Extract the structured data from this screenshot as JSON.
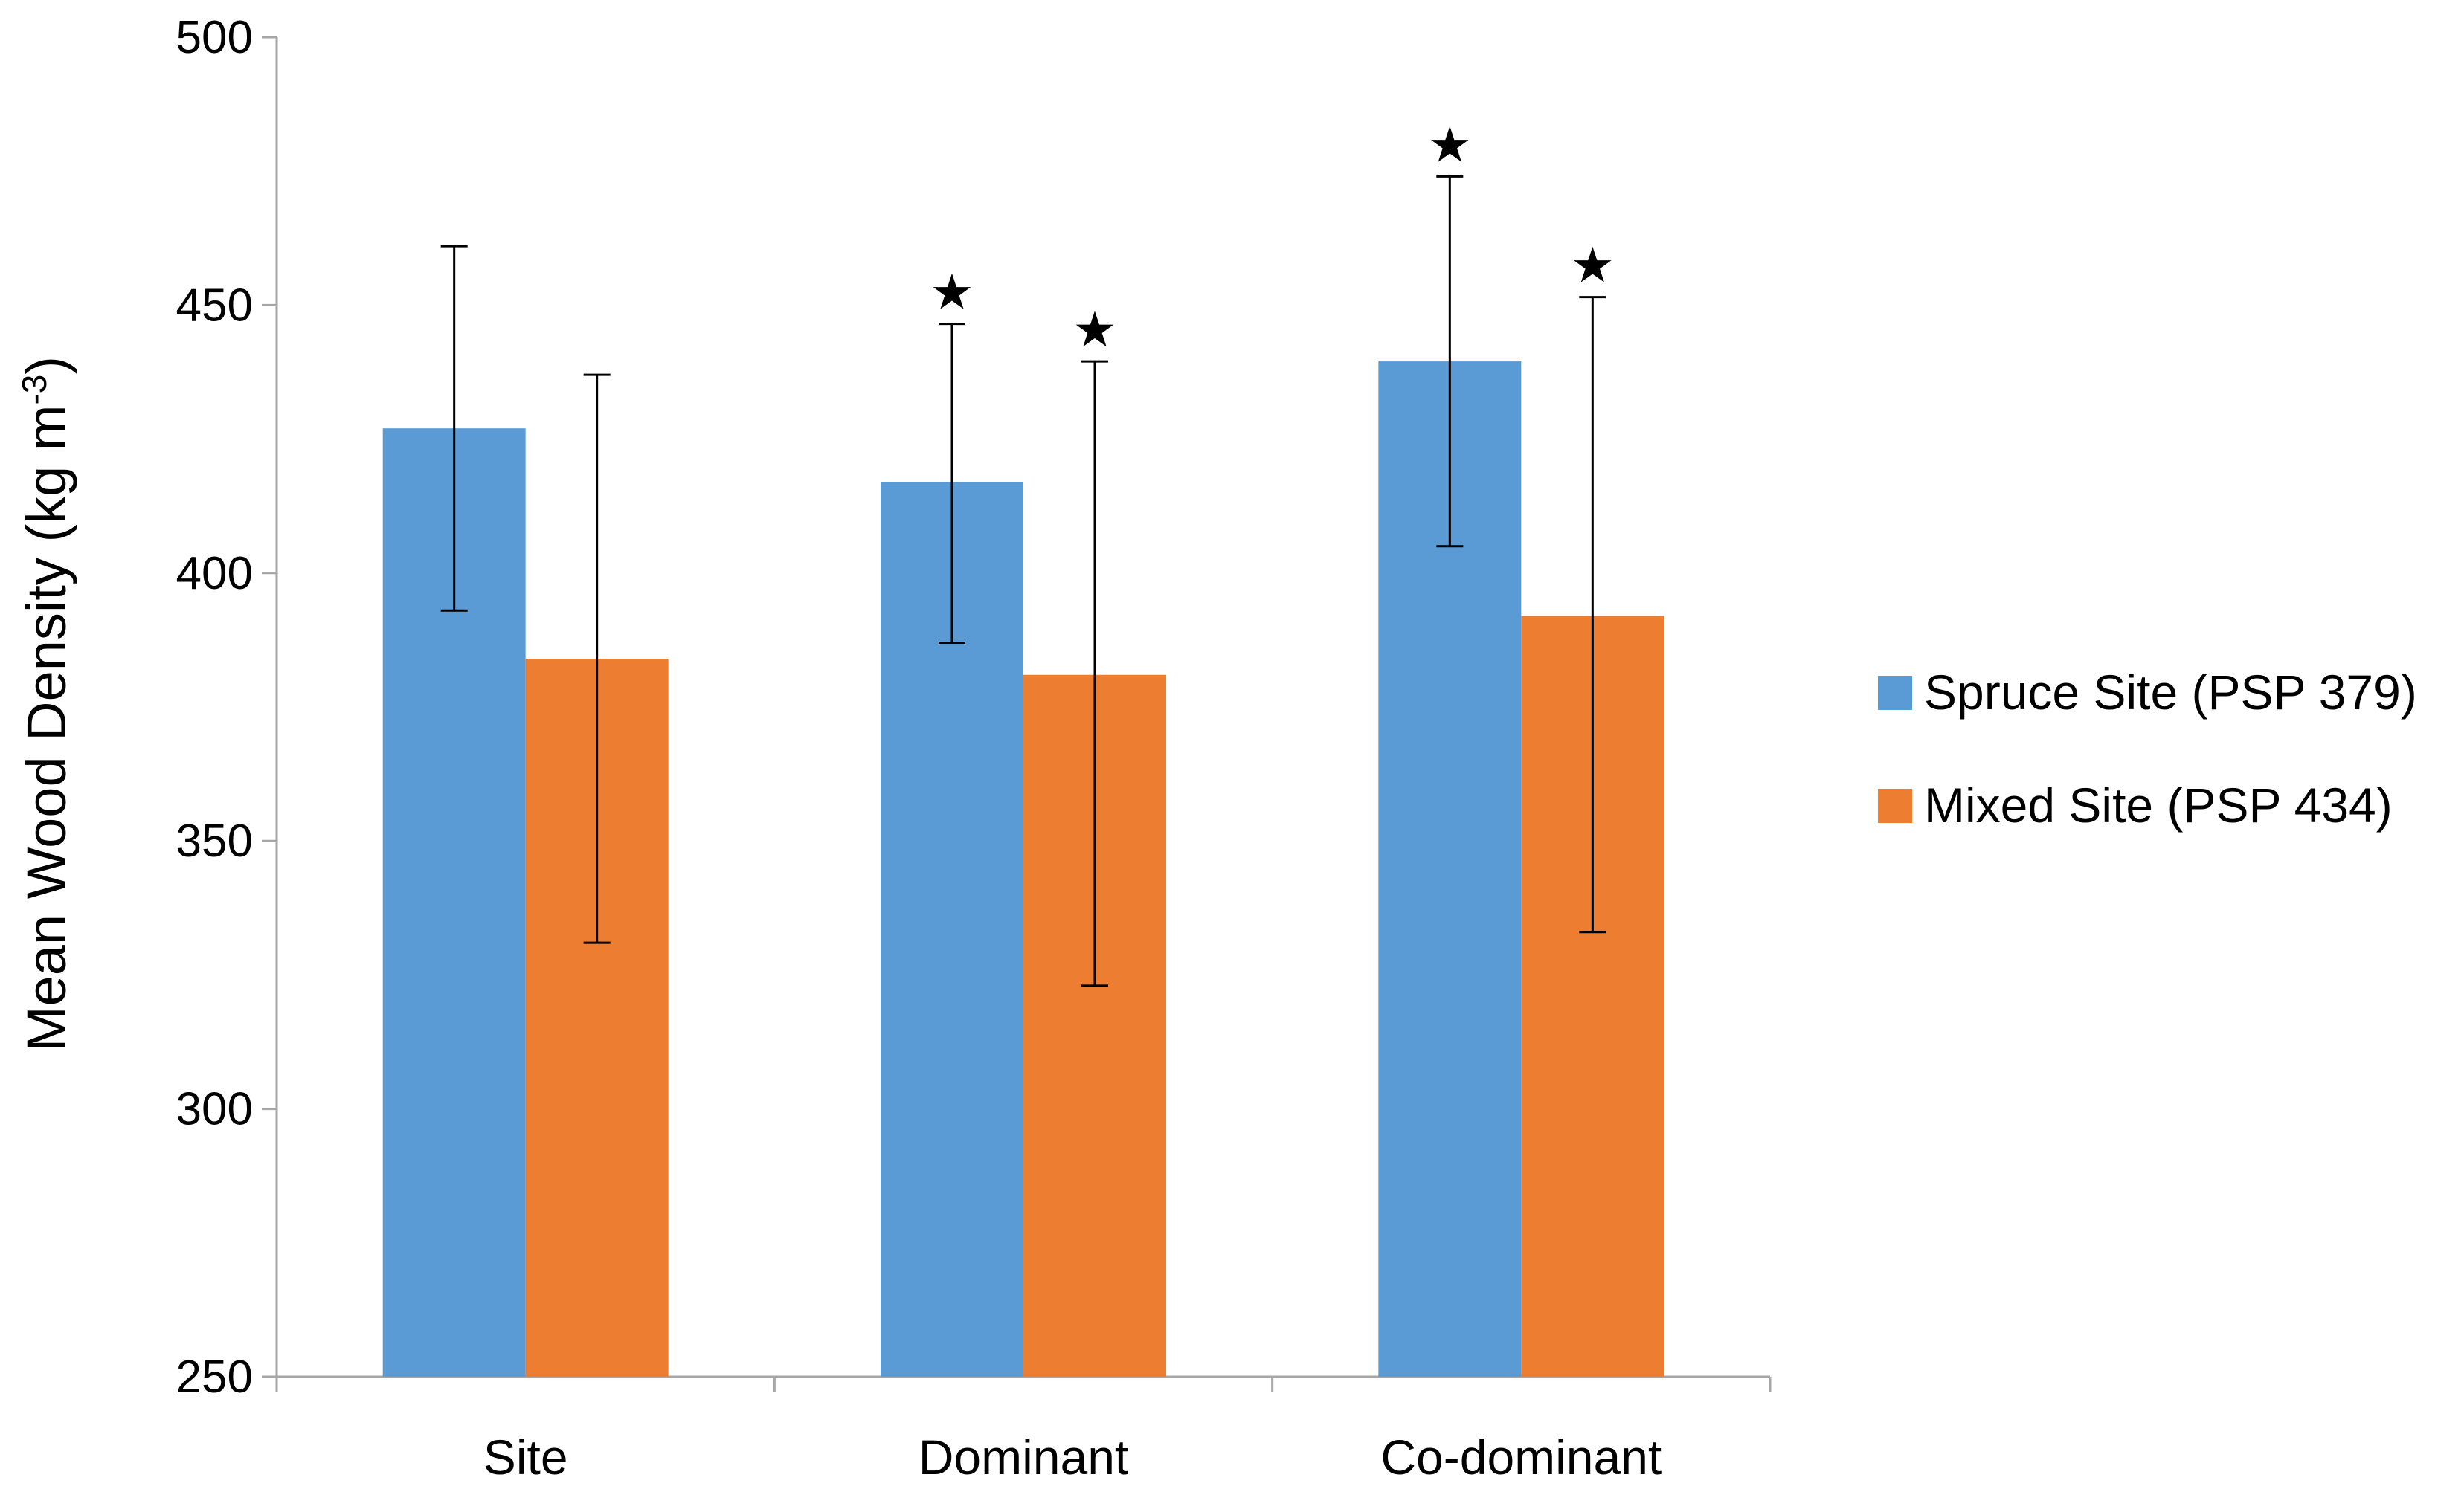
{
  "chart_data": {
    "type": "bar",
    "title": "",
    "xlabel": "",
    "ylabel": "Mean Wood Density (kg m",
    "ylabel_superscript": "-3",
    "ylabel_suffix": ")",
    "ylim": [
      250,
      500
    ],
    "yticks": [
      250,
      300,
      350,
      400,
      450,
      500
    ],
    "categories": [
      "Site",
      "Dominant",
      "Co-dominant"
    ],
    "series": [
      {
        "name": "Spruce Site (PSP 379)",
        "color": "#5b9bd5",
        "values": [
          427,
          417,
          439.5
        ],
        "error_low": [
          393,
          387,
          405
        ],
        "error_high": [
          461,
          446.5,
          474
        ],
        "significance": [
          "",
          "★",
          "★"
        ]
      },
      {
        "name": "Mixed Site (PSP 434)",
        "color": "#ed7d31",
        "values": [
          384,
          381,
          392
        ],
        "error_low": [
          331,
          323,
          333
        ],
        "error_high": [
          437,
          439.5,
          451.5
        ],
        "significance": [
          "",
          "★",
          "★"
        ]
      }
    ],
    "legend_position": "right",
    "grid": false,
    "axis_color": "#a6a6a6"
  }
}
